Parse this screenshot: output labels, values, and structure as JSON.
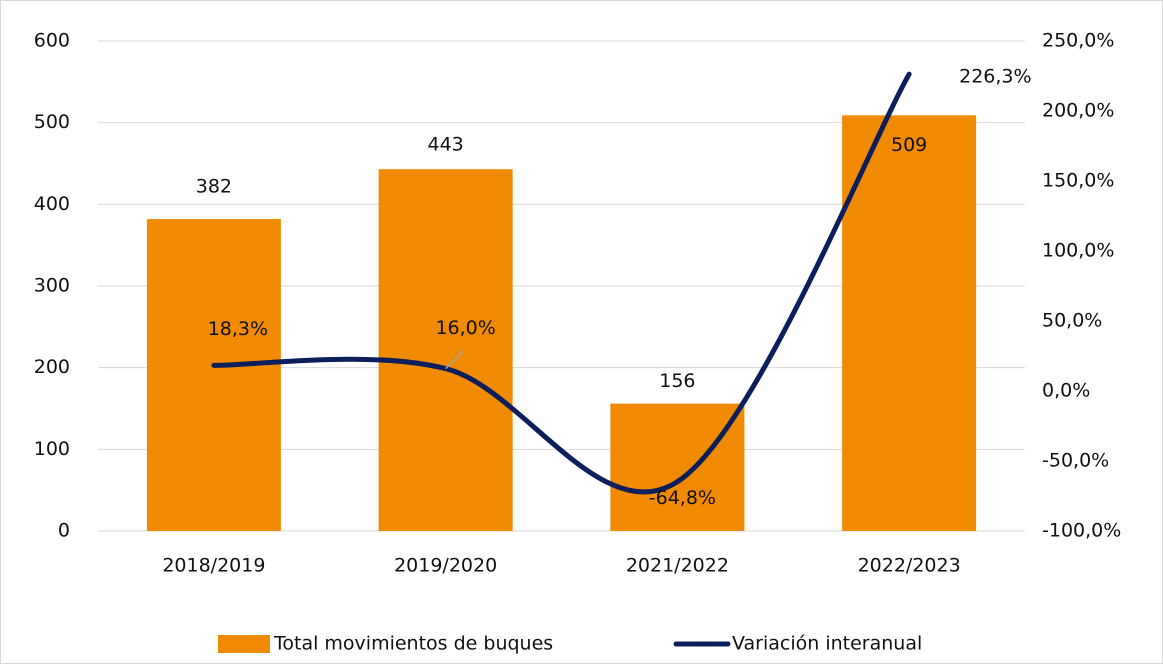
{
  "chart_data": {
    "type": "bar_line",
    "categories": [
      "2018/2019",
      "2019/2020",
      "2021/2022",
      "2022/2023"
    ],
    "series": [
      {
        "name": "Total movimientos de buques",
        "color": "#f08a00",
        "type": "bar",
        "values": [
          382,
          443,
          156,
          509
        ]
      },
      {
        "name": "Variación interanual",
        "color": "#0c1e5b",
        "type": "line",
        "axis": "y2",
        "values": [
          18.3,
          16.0,
          -64.8,
          226.3
        ],
        "value_labels": [
          "18,3%",
          "16,0%",
          "-64,8%",
          "226,3%"
        ]
      }
    ],
    "ylim": [
      0,
      600
    ],
    "yticks": [
      0,
      100,
      200,
      300,
      400,
      500,
      600
    ],
    "y2lim": [
      -100,
      250
    ],
    "y2ticks": [
      {
        "value": -100,
        "label": "-100,0%"
      },
      {
        "value": -50,
        "label": "-50,0%"
      },
      {
        "value": 0,
        "label": "0,0%"
      },
      {
        "value": 50,
        "label": "50,0%"
      },
      {
        "value": 100,
        "label": "100,0%"
      },
      {
        "value": 150,
        "label": "150,0%"
      },
      {
        "value": 200,
        "label": "200,0%"
      },
      {
        "value": 250,
        "label": "250,0%"
      }
    ],
    "grid": true,
    "legend": "bottom"
  }
}
